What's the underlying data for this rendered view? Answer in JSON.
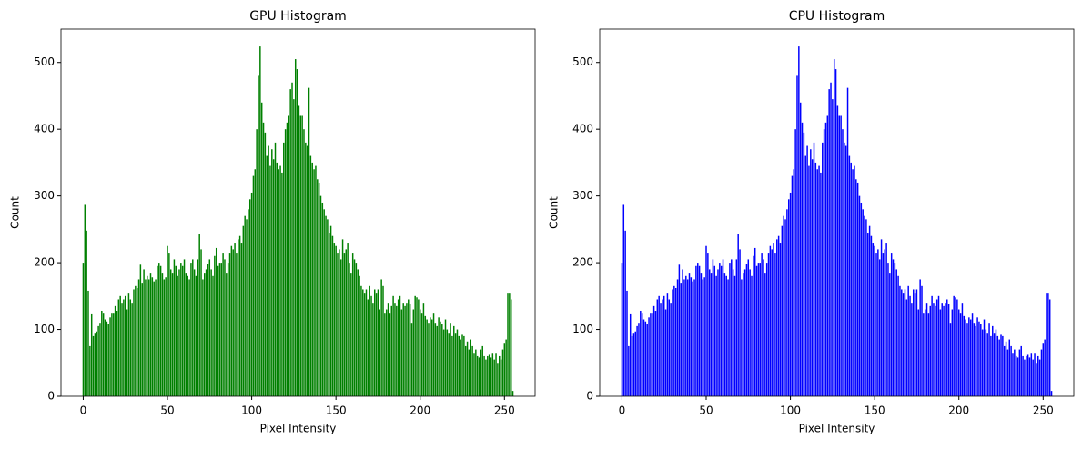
{
  "chart_data": [
    {
      "type": "bar",
      "title": "GPU Histogram",
      "x_label": "Pixel Intensity",
      "y_label": "Count",
      "color": "#008000",
      "x": [
        0,
        1,
        2,
        3,
        4,
        5,
        6,
        7,
        8,
        9,
        10,
        11,
        12,
        13,
        14,
        15,
        16,
        17,
        18,
        19,
        20,
        21,
        22,
        23,
        24,
        25,
        26,
        27,
        28,
        29,
        30,
        31,
        32,
        33,
        34,
        35,
        36,
        37,
        38,
        39,
        40,
        41,
        42,
        43,
        44,
        45,
        46,
        47,
        48,
        49,
        50,
        51,
        52,
        53,
        54,
        55,
        56,
        57,
        58,
        59,
        60,
        61,
        62,
        63,
        64,
        65,
        66,
        67,
        68,
        69,
        70,
        71,
        72,
        73,
        74,
        75,
        76,
        77,
        78,
        79,
        80,
        81,
        82,
        83,
        84,
        85,
        86,
        87,
        88,
        89,
        90,
        91,
        92,
        93,
        94,
        95,
        96,
        97,
        98,
        99,
        100,
        101,
        102,
        103,
        104,
        105,
        106,
        107,
        108,
        109,
        110,
        111,
        112,
        113,
        114,
        115,
        116,
        117,
        118,
        119,
        120,
        121,
        122,
        123,
        124,
        125,
        126,
        127,
        128,
        129,
        130,
        131,
        132,
        133,
        134,
        135,
        136,
        137,
        138,
        139,
        140,
        141,
        142,
        143,
        144,
        145,
        146,
        147,
        148,
        149,
        150,
        151,
        152,
        153,
        154,
        155,
        156,
        157,
        158,
        159,
        160,
        161,
        162,
        163,
        164,
        165,
        166,
        167,
        168,
        169,
        170,
        171,
        172,
        173,
        174,
        175,
        176,
        177,
        178,
        179,
        180,
        181,
        182,
        183,
        184,
        185,
        186,
        187,
        188,
        189,
        190,
        191,
        192,
        193,
        194,
        195,
        196,
        197,
        198,
        199,
        200,
        201,
        202,
        203,
        204,
        205,
        206,
        207,
        208,
        209,
        210,
        211,
        212,
        213,
        214,
        215,
        216,
        217,
        218,
        219,
        220,
        221,
        222,
        223,
        224,
        225,
        226,
        227,
        228,
        229,
        230,
        231,
        232,
        233,
        234,
        235,
        236,
        237,
        238,
        239,
        240,
        241,
        242,
        243,
        244,
        245,
        246,
        247,
        248,
        249,
        250,
        251,
        252,
        253,
        254,
        255
      ],
      "values": [
        200,
        288,
        248,
        158,
        75,
        124,
        90,
        95,
        97,
        105,
        110,
        128,
        125,
        115,
        112,
        108,
        118,
        125,
        125,
        135,
        128,
        145,
        150,
        140,
        145,
        150,
        130,
        155,
        145,
        140,
        160,
        165,
        162,
        175,
        197,
        170,
        190,
        175,
        180,
        175,
        185,
        178,
        172,
        175,
        195,
        200,
        195,
        185,
        175,
        178,
        225,
        215,
        190,
        185,
        205,
        195,
        180,
        190,
        200,
        195,
        205,
        185,
        180,
        175,
        200,
        205,
        190,
        180,
        205,
        243,
        220,
        175,
        185,
        190,
        198,
        205,
        190,
        180,
        210,
        222,
        195,
        200,
        200,
        215,
        205,
        185,
        200,
        215,
        225,
        220,
        230,
        215,
        235,
        240,
        230,
        255,
        270,
        265,
        280,
        295,
        305,
        330,
        340,
        400,
        480,
        524,
        440,
        410,
        395,
        360,
        375,
        345,
        370,
        355,
        380,
        350,
        340,
        345,
        335,
        380,
        400,
        410,
        420,
        460,
        470,
        445,
        505,
        490,
        435,
        420,
        420,
        400,
        380,
        375,
        462,
        360,
        350,
        340,
        345,
        325,
        320,
        300,
        290,
        280,
        270,
        265,
        245,
        255,
        240,
        230,
        225,
        215,
        220,
        205,
        235,
        215,
        220,
        230,
        200,
        185,
        215,
        205,
        200,
        190,
        180,
        165,
        160,
        155,
        160,
        145,
        165,
        150,
        140,
        160,
        155,
        160,
        130,
        175,
        165,
        125,
        130,
        140,
        125,
        135,
        150,
        140,
        135,
        145,
        150,
        130,
        140,
        135,
        140,
        145,
        138,
        110,
        130,
        150,
        148,
        145,
        130,
        125,
        140,
        120,
        115,
        110,
        118,
        115,
        125,
        110,
        105,
        118,
        112,
        108,
        100,
        115,
        100,
        95,
        110,
        90,
        105,
        95,
        100,
        90,
        85,
        92,
        90,
        75,
        82,
        70,
        85,
        75,
        65,
        70,
        60,
        58,
        70,
        75,
        60,
        55,
        60,
        62,
        58,
        65,
        55,
        65,
        50,
        60,
        55,
        70,
        80,
        85,
        155,
        155,
        145,
        8
      ],
      "xlim": [
        -13.2,
        268.2
      ],
      "xticks": [
        0,
        50,
        100,
        150,
        200,
        250
      ],
      "ylim": [
        0,
        550
      ],
      "yticks": [
        0,
        100,
        200,
        300,
        400,
        500
      ]
    },
    {
      "type": "bar",
      "title": "CPU Histogram",
      "x_label": "Pixel Intensity",
      "y_label": "Count",
      "color": "#0000ff",
      "x": [
        0,
        1,
        2,
        3,
        4,
        5,
        6,
        7,
        8,
        9,
        10,
        11,
        12,
        13,
        14,
        15,
        16,
        17,
        18,
        19,
        20,
        21,
        22,
        23,
        24,
        25,
        26,
        27,
        28,
        29,
        30,
        31,
        32,
        33,
        34,
        35,
        36,
        37,
        38,
        39,
        40,
        41,
        42,
        43,
        44,
        45,
        46,
        47,
        48,
        49,
        50,
        51,
        52,
        53,
        54,
        55,
        56,
        57,
        58,
        59,
        60,
        61,
        62,
        63,
        64,
        65,
        66,
        67,
        68,
        69,
        70,
        71,
        72,
        73,
        74,
        75,
        76,
        77,
        78,
        79,
        80,
        81,
        82,
        83,
        84,
        85,
        86,
        87,
        88,
        89,
        90,
        91,
        92,
        93,
        94,
        95,
        96,
        97,
        98,
        99,
        100,
        101,
        102,
        103,
        104,
        105,
        106,
        107,
        108,
        109,
        110,
        111,
        112,
        113,
        114,
        115,
        116,
        117,
        118,
        119,
        120,
        121,
        122,
        123,
        124,
        125,
        126,
        127,
        128,
        129,
        130,
        131,
        132,
        133,
        134,
        135,
        136,
        137,
        138,
        139,
        140,
        141,
        142,
        143,
        144,
        145,
        146,
        147,
        148,
        149,
        150,
        151,
        152,
        153,
        154,
        155,
        156,
        157,
        158,
        159,
        160,
        161,
        162,
        163,
        164,
        165,
        166,
        167,
        168,
        169,
        170,
        171,
        172,
        173,
        174,
        175,
        176,
        177,
        178,
        179,
        180,
        181,
        182,
        183,
        184,
        185,
        186,
        187,
        188,
        189,
        190,
        191,
        192,
        193,
        194,
        195,
        196,
        197,
        198,
        199,
        200,
        201,
        202,
        203,
        204,
        205,
        206,
        207,
        208,
        209,
        210,
        211,
        212,
        213,
        214,
        215,
        216,
        217,
        218,
        219,
        220,
        221,
        222,
        223,
        224,
        225,
        226,
        227,
        228,
        229,
        230,
        231,
        232,
        233,
        234,
        235,
        236,
        237,
        238,
        239,
        240,
        241,
        242,
        243,
        244,
        245,
        246,
        247,
        248,
        249,
        250,
        251,
        252,
        253,
        254,
        255
      ],
      "values": [
        200,
        288,
        248,
        158,
        75,
        124,
        90,
        95,
        97,
        105,
        110,
        128,
        125,
        115,
        112,
        108,
        118,
        125,
        125,
        135,
        128,
        145,
        150,
        140,
        145,
        150,
        130,
        155,
        145,
        140,
        160,
        165,
        162,
        175,
        197,
        170,
        190,
        175,
        180,
        175,
        185,
        178,
        172,
        175,
        195,
        200,
        195,
        185,
        175,
        178,
        225,
        215,
        190,
        185,
        205,
        195,
        180,
        190,
        200,
        195,
        205,
        185,
        180,
        175,
        200,
        205,
        190,
        180,
        205,
        243,
        220,
        175,
        185,
        190,
        198,
        205,
        190,
        180,
        210,
        222,
        195,
        200,
        200,
        215,
        205,
        185,
        200,
        215,
        225,
        220,
        230,
        215,
        235,
        240,
        230,
        255,
        270,
        265,
        280,
        295,
        305,
        330,
        340,
        400,
        480,
        524,
        440,
        410,
        395,
        360,
        375,
        345,
        370,
        355,
        380,
        350,
        340,
        345,
        335,
        380,
        400,
        410,
        420,
        460,
        470,
        445,
        505,
        490,
        435,
        420,
        420,
        400,
        380,
        375,
        462,
        360,
        350,
        340,
        345,
        325,
        320,
        300,
        290,
        280,
        270,
        265,
        245,
        255,
        240,
        230,
        225,
        215,
        220,
        205,
        235,
        215,
        220,
        230,
        200,
        185,
        215,
        205,
        200,
        190,
        180,
        165,
        160,
        155,
        160,
        145,
        165,
        150,
        140,
        160,
        155,
        160,
        130,
        175,
        165,
        125,
        130,
        140,
        125,
        135,
        150,
        140,
        135,
        145,
        150,
        130,
        140,
        135,
        140,
        145,
        138,
        110,
        130,
        150,
        148,
        145,
        130,
        125,
        140,
        120,
        115,
        110,
        118,
        115,
        125,
        110,
        105,
        118,
        112,
        108,
        100,
        115,
        100,
        95,
        110,
        90,
        105,
        95,
        100,
        90,
        85,
        92,
        90,
        75,
        82,
        70,
        85,
        75,
        65,
        70,
        60,
        58,
        70,
        75,
        60,
        55,
        60,
        62,
        58,
        65,
        55,
        65,
        50,
        60,
        55,
        70,
        80,
        85,
        155,
        155,
        145,
        8
      ],
      "xlim": [
        -13.2,
        268.2
      ],
      "xticks": [
        0,
        50,
        100,
        150,
        200,
        250
      ],
      "ylim": [
        0,
        550
      ],
      "yticks": [
        0,
        100,
        200,
        300,
        400,
        500
      ]
    }
  ]
}
